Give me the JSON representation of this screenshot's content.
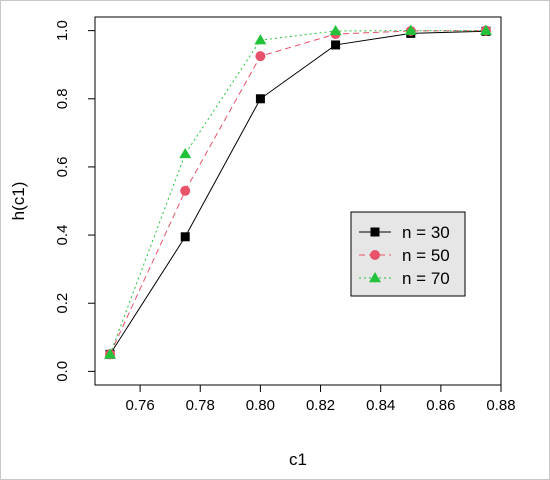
{
  "chart_data": {
    "type": "line",
    "xlabel": "c1",
    "ylabel": "h(c1)",
    "xlim": [
      0.745,
      0.88
    ],
    "ylim": [
      -0.04,
      1.04
    ],
    "xticks": [
      "0.76",
      "0.78",
      "0.80",
      "0.82",
      "0.84",
      "0.86",
      "0.88"
    ],
    "yticks": [
      "0.0",
      "0.2",
      "0.4",
      "0.6",
      "0.8",
      "1.0"
    ],
    "x": [
      0.75,
      0.775,
      0.8,
      0.825,
      0.85,
      0.875
    ],
    "grid": false,
    "legend_position": "right",
    "series": [
      {
        "name": "n = 30",
        "values": [
          0.05,
          0.395,
          0.8,
          0.958,
          0.992,
          0.998
        ],
        "color": "#000000",
        "marker": "square",
        "dash": "solid"
      },
      {
        "name": "n = 50",
        "values": [
          0.05,
          0.53,
          0.925,
          0.99,
          0.999,
          1.0
        ],
        "color": "#e8536b",
        "marker": "circle",
        "dash": "dashed"
      },
      {
        "name": "n = 70",
        "values": [
          0.05,
          0.638,
          0.972,
          0.999,
          1.0,
          1.0
        ],
        "color": "#22c33a",
        "marker": "triangle",
        "dash": "dotted"
      }
    ]
  }
}
